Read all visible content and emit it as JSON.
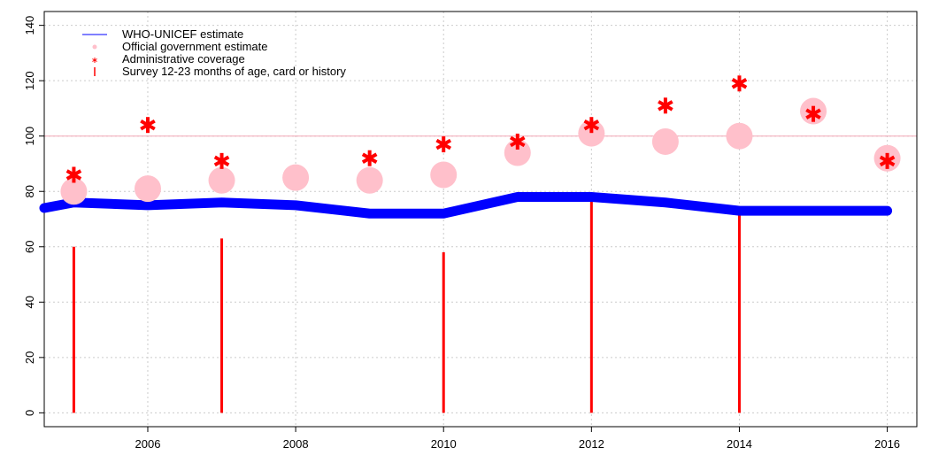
{
  "chart_data": {
    "type": "line",
    "title": "",
    "xlabel": "",
    "ylabel": "",
    "xlim": [
      2004.6,
      2016.4
    ],
    "ylim": [
      -5,
      145
    ],
    "x_ticks": [
      2006,
      2008,
      2010,
      2012,
      2014,
      2016
    ],
    "y_ticks": [
      0,
      20,
      40,
      60,
      80,
      100,
      120,
      140
    ],
    "grid": true,
    "reference_line": 100,
    "legend_position": "top-left",
    "legend": [
      {
        "label": "WHO-UNICEF estimate",
        "symbol": "line",
        "color": "#0000ff"
      },
      {
        "label": "Official government estimate",
        "symbol": "dot",
        "color": "#ffc0cb"
      },
      {
        "label": "Administrative coverage",
        "symbol": "star",
        "color": "#ff0000"
      },
      {
        "label": "Survey 12-23 months of age, card or history",
        "symbol": "bar",
        "color": "#ff0000"
      }
    ],
    "series": [
      {
        "name": "WHO-UNICEF estimate",
        "color": "#0000ff",
        "x": [
          2004.6,
          2005,
          2006,
          2007,
          2008,
          2009,
          2010,
          2011,
          2012,
          2013,
          2014,
          2015,
          2016
        ],
        "values": [
          74,
          76,
          75,
          76,
          75,
          72,
          72,
          78,
          78,
          76,
          73,
          73,
          73
        ]
      },
      {
        "name": "Official government estimate",
        "color": "#ffc0cb",
        "x": [
          2005,
          2006,
          2007,
          2008,
          2009,
          2010,
          2011,
          2012,
          2013,
          2014,
          2015,
          2016
        ],
        "values": [
          80,
          81,
          84,
          85,
          84,
          86,
          94,
          101,
          98,
          100,
          109,
          92
        ]
      },
      {
        "name": "Administrative coverage",
        "color": "#ff0000",
        "x": [
          2005,
          2006,
          2007,
          2009,
          2010,
          2011,
          2012,
          2013,
          2014,
          2015,
          2016
        ],
        "values": [
          86,
          104,
          91,
          92,
          97,
          98,
          104,
          111,
          119,
          108,
          91
        ]
      },
      {
        "name": "Survey 12-23 months of age, card or history",
        "color": "#ff0000",
        "x": [
          2005,
          2007,
          2010,
          2012,
          2014
        ],
        "values": [
          60,
          63,
          58,
          78,
          73
        ]
      }
    ]
  }
}
